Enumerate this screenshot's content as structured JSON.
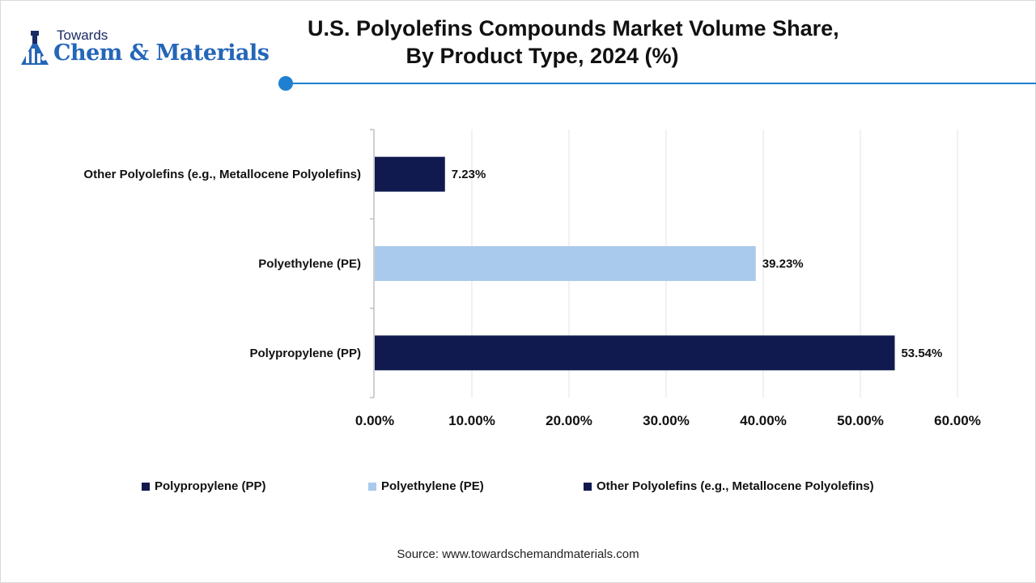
{
  "brand": {
    "top": "Towards",
    "bottom": "Chem & Materials"
  },
  "title_lines": [
    "U.S. Polyolefins Compounds Market Volume Share,",
    "By Product Type, 2024 (%)"
  ],
  "colors": {
    "accent": "#1f7fd0",
    "navy": "#111a4f",
    "light_blue": "#a9caec"
  },
  "chart_data": {
    "type": "bar",
    "orientation": "horizontal",
    "categories": [
      "Other Polyolefins (e.g., Metallocene Polyolefins)",
      "Polyethylene (PE)",
      "Polypropylene (PP)"
    ],
    "values": [
      7.23,
      39.23,
      53.54
    ],
    "data_labels": [
      "7.23%",
      "39.23%",
      "53.54%"
    ],
    "bar_colors": [
      "#111a4f",
      "#a9caec",
      "#111a4f"
    ],
    "xlim": [
      0,
      60
    ],
    "x_ticks": [
      0,
      10,
      20,
      30,
      40,
      50,
      60
    ],
    "x_tick_labels": [
      "0.00%",
      "10.00%",
      "20.00%",
      "30.00%",
      "40.00%",
      "50.00%",
      "60.00%"
    ],
    "grid": true,
    "legend_position": "bottom",
    "legend": [
      {
        "label": "Polypropylene (PP)",
        "color": "#111a4f"
      },
      {
        "label": "Polyethylene (PE)",
        "color": "#a9caec"
      },
      {
        "label": "Other Polyolefins (e.g., Metallocene Polyolefins)",
        "color": "#111a4f"
      }
    ]
  },
  "source": "Source: www.towardschemandmaterials.com"
}
